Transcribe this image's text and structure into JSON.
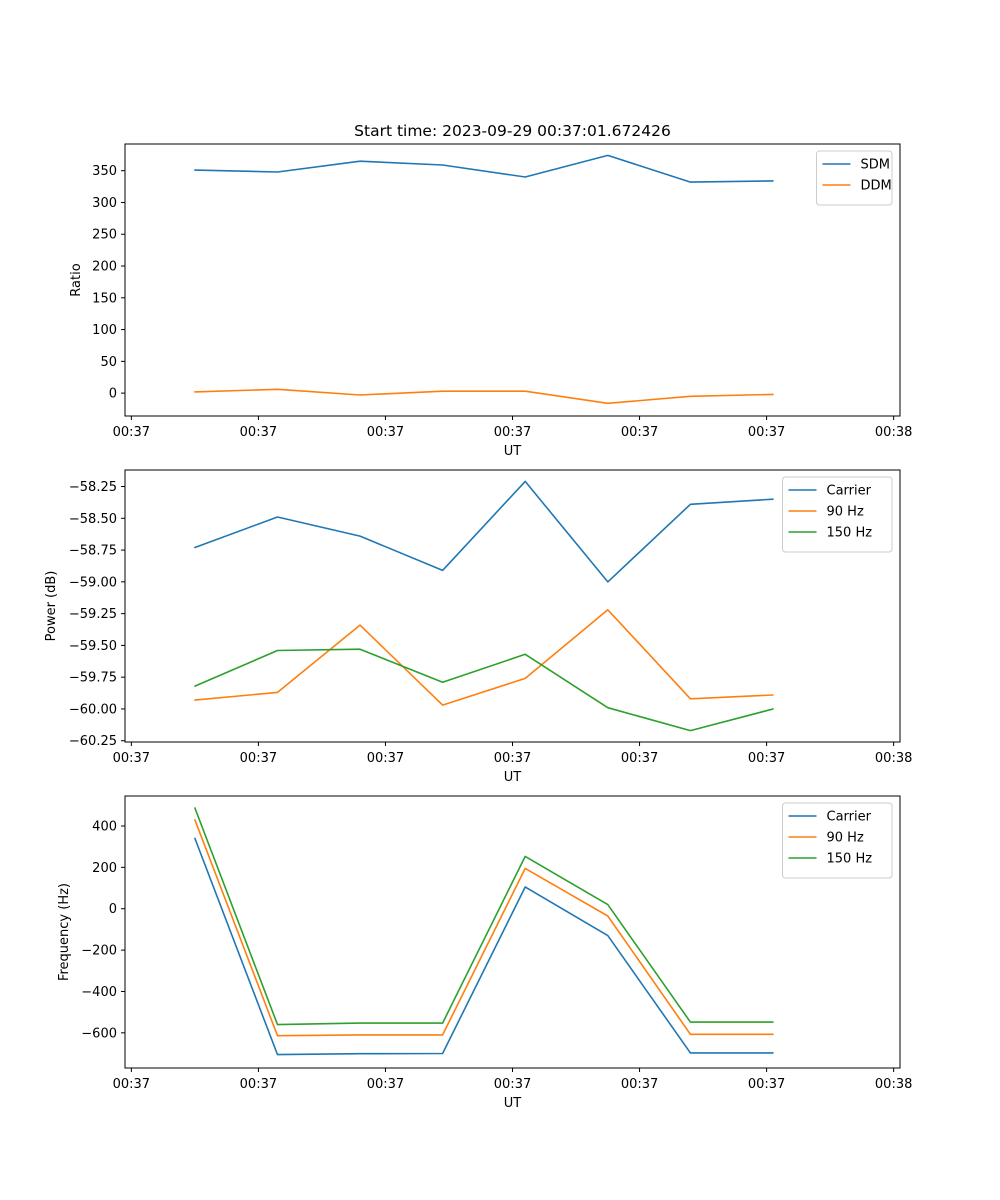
{
  "chart_data": [
    {
      "type": "line",
      "title": "Start time: 2023-09-29 00:37:01.672426",
      "xlabel": "UT",
      "ylabel": "Ratio",
      "x_tick_labels": [
        "00:37",
        "00:37",
        "00:37",
        "00:37",
        "00:37",
        "00:37",
        "00:38"
      ],
      "x_tick_values": [
        0,
        1,
        2,
        3,
        4,
        5,
        6
      ],
      "xlim": [
        -0.05,
        6.05
      ],
      "x": [
        0.5,
        1.15,
        1.8,
        2.45,
        3.1,
        3.75,
        4.4,
        5.05
      ],
      "ylim": [
        -36,
        392
      ],
      "yticks": [
        0,
        50,
        100,
        150,
        200,
        250,
        300,
        350
      ],
      "legend_position": "top-right",
      "grid": false,
      "series": [
        {
          "name": "SDM",
          "color": "#1f77b4",
          "values": [
            351,
            348,
            365,
            359,
            340,
            374,
            332,
            334
          ]
        },
        {
          "name": "DDM",
          "color": "#ff7f0e",
          "values": [
            2,
            6,
            -3,
            3,
            3,
            -16,
            -5,
            -2
          ]
        }
      ]
    },
    {
      "type": "line",
      "title": "",
      "xlabel": "UT",
      "ylabel": "Power (dB)",
      "x_tick_labels": [
        "00:37",
        "00:37",
        "00:37",
        "00:37",
        "00:37",
        "00:37",
        "00:38"
      ],
      "x_tick_values": [
        0,
        1,
        2,
        3,
        4,
        5,
        6
      ],
      "xlim": [
        -0.05,
        6.05
      ],
      "x": [
        0.5,
        1.15,
        1.8,
        2.45,
        3.1,
        3.75,
        4.4,
        5.05
      ],
      "ylim": [
        -60.26,
        -58.12
      ],
      "yticks": [
        -60.25,
        -60.0,
        -59.75,
        -59.5,
        -59.25,
        -59.0,
        -58.75,
        -58.5,
        -58.25
      ],
      "ytick_labels": [
        "−60.25",
        "−60.00",
        "−59.75",
        "−59.50",
        "−59.25",
        "−59.00",
        "−58.75",
        "−58.50",
        "−58.25"
      ],
      "legend_position": "top-right",
      "grid": false,
      "series": [
        {
          "name": "Carrier",
          "color": "#1f77b4",
          "values": [
            -58.73,
            -58.49,
            -58.64,
            -58.91,
            -58.21,
            -59.0,
            -58.39,
            -58.35
          ]
        },
        {
          "name": "90 Hz",
          "color": "#ff7f0e",
          "values": [
            -59.93,
            -59.87,
            -59.34,
            -59.97,
            -59.76,
            -59.22,
            -59.92,
            -59.89
          ]
        },
        {
          "name": "150 Hz",
          "color": "#2ca02c",
          "values": [
            -59.82,
            -59.54,
            -59.53,
            -59.79,
            -59.57,
            -59.99,
            -60.17,
            -60.0
          ]
        }
      ]
    },
    {
      "type": "line",
      "title": "",
      "xlabel": "UT",
      "ylabel": "Frequency (Hz)",
      "x_tick_labels": [
        "00:37",
        "00:37",
        "00:37",
        "00:37",
        "00:37",
        "00:37",
        "00:38"
      ],
      "x_tick_values": [
        0,
        1,
        2,
        3,
        4,
        5,
        6
      ],
      "xlim": [
        -0.05,
        6.05
      ],
      "x": [
        0.5,
        1.15,
        1.8,
        2.45,
        3.1,
        3.75,
        4.4,
        5.05
      ],
      "ylim": [
        -770,
        545
      ],
      "yticks": [
        -600,
        -400,
        -200,
        0,
        200,
        400
      ],
      "ytick_labels": [
        "−600",
        "−400",
        "−200",
        "0",
        "200",
        "400"
      ],
      "legend_position": "top-right",
      "grid": false,
      "series": [
        {
          "name": "Carrier",
          "color": "#1f77b4",
          "values": [
            340,
            -705,
            -701,
            -700,
            105,
            -130,
            -697,
            -697
          ]
        },
        {
          "name": "90 Hz",
          "color": "#ff7f0e",
          "values": [
            430,
            -614,
            -610,
            -610,
            195,
            -35,
            -607,
            -607
          ]
        },
        {
          "name": "150 Hz",
          "color": "#2ca02c",
          "values": [
            487,
            -560,
            -553,
            -553,
            253,
            20,
            -548,
            -548
          ]
        }
      ]
    }
  ]
}
